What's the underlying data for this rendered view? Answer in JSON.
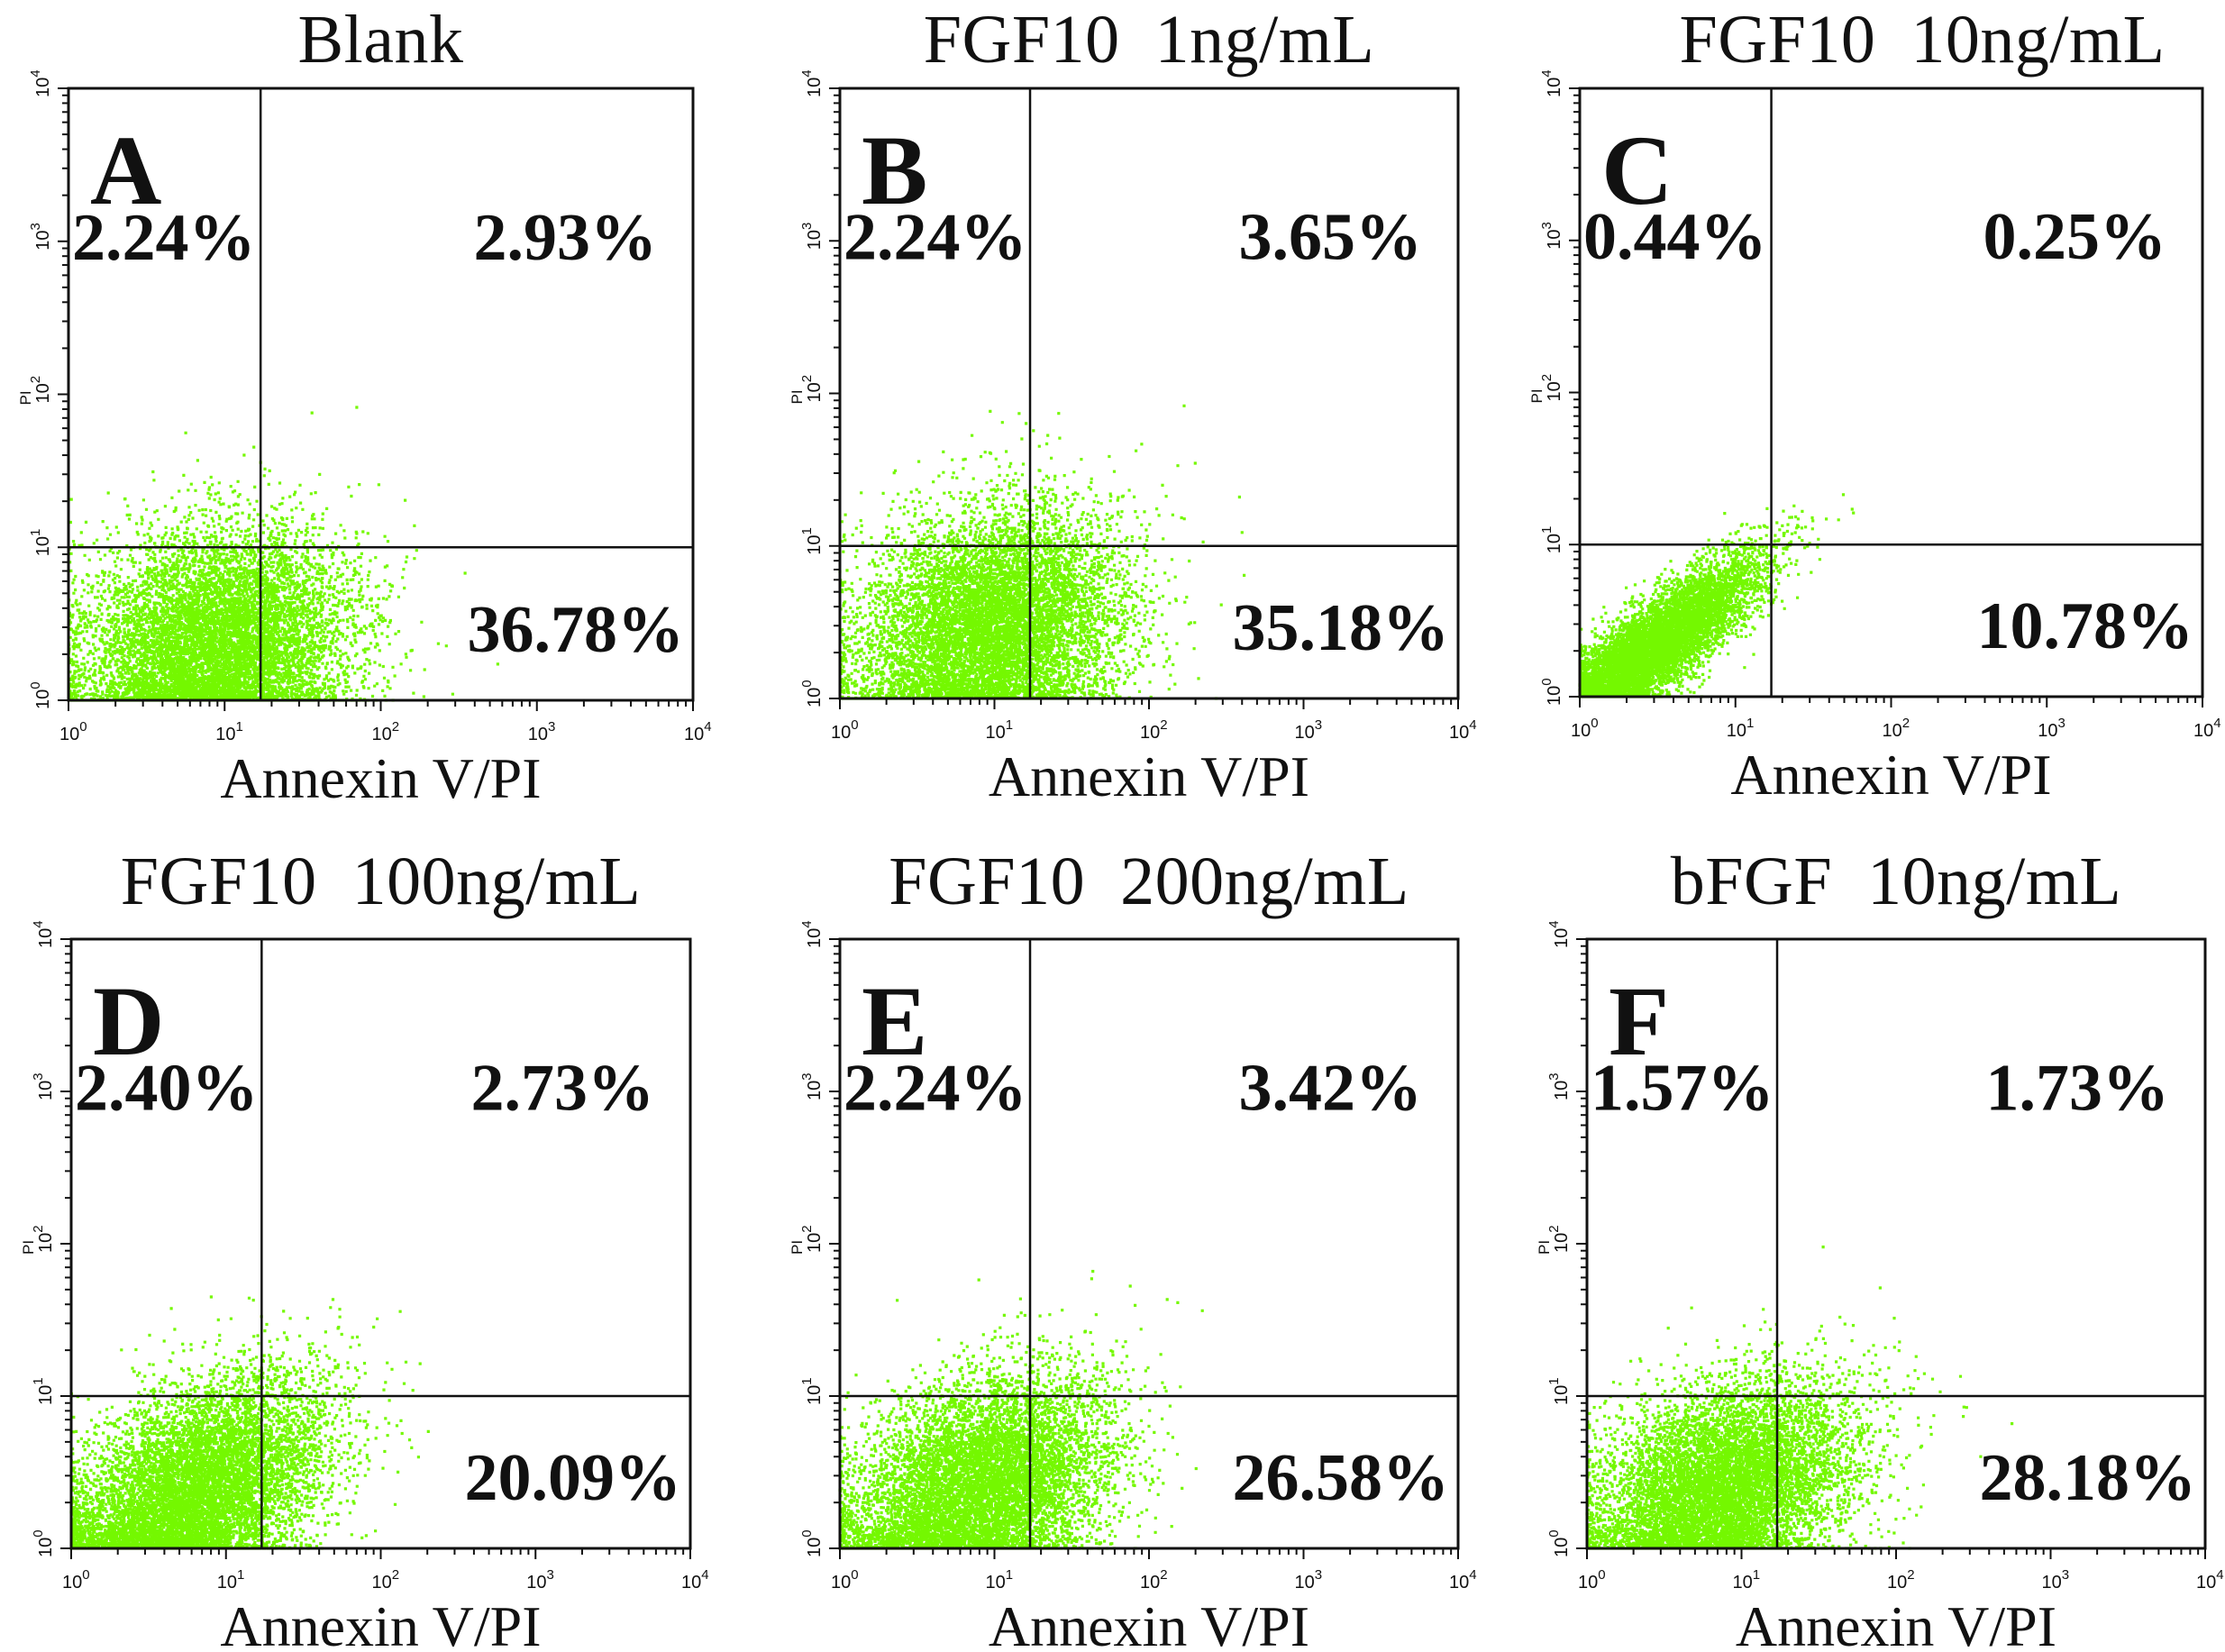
{
  "figure": {
    "dot_color": "#74f800",
    "line_color": "#111111"
  },
  "chart_data": [
    {
      "type": "scatter",
      "panel_letter": "A",
      "title": "Blank",
      "xlabel": "Annexin V/PI",
      "ylabel": "PI",
      "xscale": "log",
      "yscale": "log",
      "xlim": [
        1,
        10000
      ],
      "ylim": [
        1,
        10000
      ],
      "x_ticks": [
        "10^0",
        "10^1",
        "10^2",
        "10^3",
        "10^4"
      ],
      "y_ticks": [
        "10^0",
        "10^1",
        "10^2",
        "10^3",
        "10^4"
      ],
      "gate": {
        "x": 17,
        "y": 10
      },
      "quadrants": {
        "upper_left": "2.24%",
        "upper_right": "2.93%",
        "lower_right": "36.78%"
      },
      "population": {
        "n": 9000,
        "x_log_center": 0.95,
        "x_log_sd": 0.42,
        "y_log_center": 0.35,
        "y_log_sd": 0.38,
        "corr": 0.15
      }
    },
    {
      "type": "scatter",
      "panel_letter": "B",
      "title": "FGF10  1ng/mL",
      "xlabel": "Annexin V/PI",
      "ylabel": "PI",
      "xscale": "log",
      "yscale": "log",
      "xlim": [
        1,
        10000
      ],
      "ylim": [
        1,
        10000
      ],
      "x_ticks": [
        "10^0",
        "10^1",
        "10^2",
        "10^3",
        "10^4"
      ],
      "y_ticks": [
        "10^0",
        "10^1",
        "10^2",
        "10^3",
        "10^4"
      ],
      "gate": {
        "x": 17,
        "y": 10
      },
      "quadrants": {
        "upper_left": "2.24%",
        "upper_right": "3.65%",
        "lower_right": "35.18%"
      },
      "population": {
        "n": 9000,
        "x_log_center": 0.98,
        "x_log_sd": 0.42,
        "y_log_center": 0.45,
        "y_log_sd": 0.4,
        "corr": 0.2
      }
    },
    {
      "type": "scatter",
      "panel_letter": "C",
      "title": "FGF10  10ng/mL",
      "xlabel": "Annexin V/PI",
      "ylabel": "PI",
      "xscale": "log",
      "yscale": "log",
      "xlim": [
        1,
        10000
      ],
      "ylim": [
        1,
        10000
      ],
      "x_ticks": [
        "10^0",
        "10^1",
        "10^2",
        "10^3",
        "10^4"
      ],
      "y_ticks": [
        "10^0",
        "10^1",
        "10^2",
        "10^3",
        "10^4"
      ],
      "gate": {
        "x": 17,
        "y": 10
      },
      "quadrants": {
        "upper_left": "0.44%",
        "upper_right": "0.25%",
        "lower_right": "10.78%"
      },
      "population": {
        "n": 7500,
        "x_log_center": 0.45,
        "x_log_sd": 0.35,
        "y_log_center": 0.3,
        "y_log_sd": 0.3,
        "corr": 0.85
      }
    },
    {
      "type": "scatter",
      "panel_letter": "D",
      "title": "FGF10  100ng/mL",
      "xlabel": "Annexin V/PI",
      "ylabel": "PI",
      "xscale": "log",
      "yscale": "log",
      "xlim": [
        1,
        10000
      ],
      "ylim": [
        1,
        10000
      ],
      "x_ticks": [
        "10^0",
        "10^1",
        "10^2",
        "10^3",
        "10^4"
      ],
      "y_ticks": [
        "10^0",
        "10^1",
        "10^2",
        "10^3",
        "10^4"
      ],
      "gate": {
        "x": 17,
        "y": 10
      },
      "quadrants": {
        "upper_left": "2.40%",
        "upper_right": "2.73%",
        "lower_right": "20.09%"
      },
      "population": {
        "n": 9000,
        "x_log_center": 0.8,
        "x_log_sd": 0.42,
        "y_log_center": 0.35,
        "y_log_sd": 0.38,
        "corr": 0.45
      }
    },
    {
      "type": "scatter",
      "panel_letter": "E",
      "title": "FGF10  200ng/mL",
      "xlabel": "Annexin V/PI",
      "ylabel": "PI",
      "xscale": "log",
      "yscale": "log",
      "xlim": [
        1,
        10000
      ],
      "ylim": [
        1,
        10000
      ],
      "x_ticks": [
        "10^0",
        "10^1",
        "10^2",
        "10^3",
        "10^4"
      ],
      "y_ticks": [
        "10^0",
        "10^1",
        "10^2",
        "10^3",
        "10^4"
      ],
      "gate": {
        "x": 17,
        "y": 10
      },
      "quadrants": {
        "upper_left": "2.24%",
        "upper_right": "3.42%",
        "lower_right": "26.58%"
      },
      "population": {
        "n": 8500,
        "x_log_center": 0.9,
        "x_log_sd": 0.42,
        "y_log_center": 0.38,
        "y_log_sd": 0.38,
        "corr": 0.35
      }
    },
    {
      "type": "scatter",
      "panel_letter": "F",
      "title": "bFGF  10ng/mL",
      "xlabel": "Annexin V/PI",
      "ylabel": "PI",
      "xscale": "log",
      "yscale": "log",
      "xlim": [
        1,
        10000
      ],
      "ylim": [
        1,
        10000
      ],
      "x_ticks": [
        "10^0",
        "10^1",
        "10^2",
        "10^3",
        "10^4"
      ],
      "y_ticks": [
        "10^0",
        "10^1",
        "10^2",
        "10^3",
        "10^4"
      ],
      "gate": {
        "x": 17,
        "y": 10
      },
      "quadrants": {
        "upper_left": "1.57%",
        "upper_right": "1.73%",
        "lower_right": "28.18%"
      },
      "population": {
        "n": 8500,
        "x_log_center": 0.88,
        "x_log_sd": 0.42,
        "y_log_center": 0.38,
        "y_log_sd": 0.36,
        "corr": 0.35
      }
    }
  ]
}
